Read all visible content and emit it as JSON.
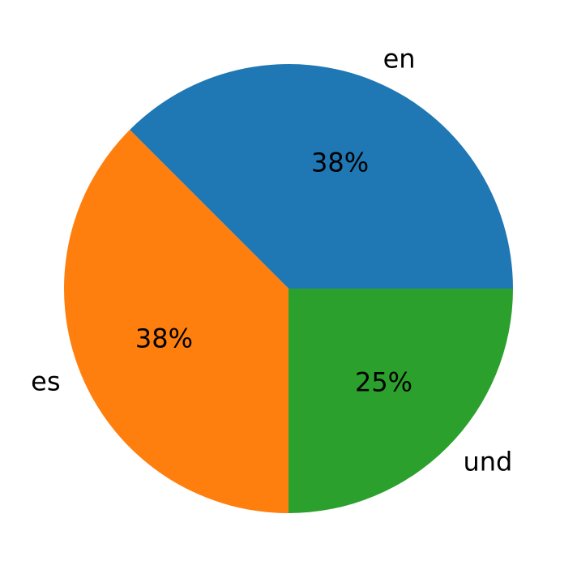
{
  "chart_data": {
    "type": "pie",
    "categories": [
      "en",
      "es",
      "und"
    ],
    "values": [
      37.5,
      37.5,
      25
    ],
    "value_labels": [
      "38%",
      "38%",
      "25%"
    ],
    "colors": [
      "#1f77b4",
      "#ff7f0e",
      "#2ca02c"
    ]
  }
}
